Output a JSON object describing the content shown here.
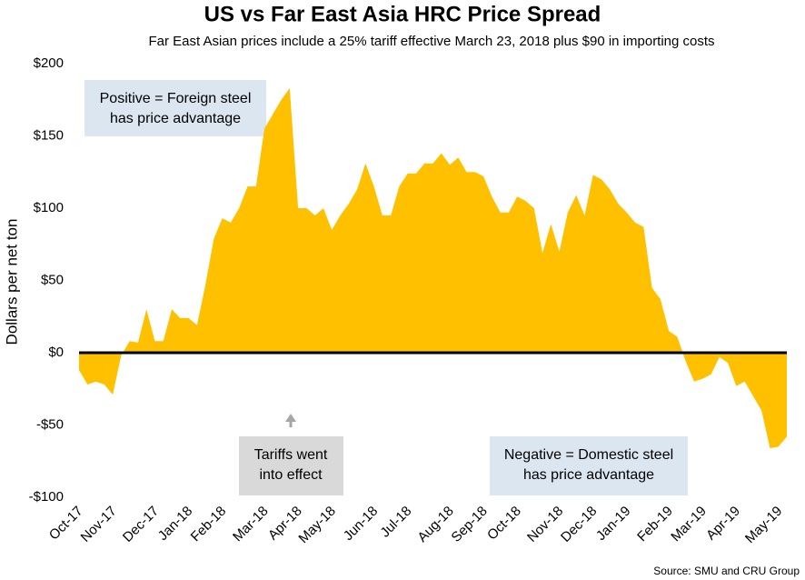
{
  "chart_data": {
    "type": "area",
    "title": "US vs Far East Asia HRC Price Spread",
    "subtitle": "Far East Asian prices include a 25% tariff effective March 23, 2018 plus $90 in importing costs",
    "y_label": "Dollars per net ton",
    "source": "Source: SMU and CRU Group",
    "color": "#FFC000",
    "categories": [
      "Oct-17",
      null,
      null,
      null,
      "Nov-17",
      null,
      null,
      null,
      null,
      "Dec-17",
      null,
      null,
      null,
      "Jan-18",
      null,
      null,
      null,
      "Feb-18",
      null,
      null,
      null,
      null,
      "Mar-18",
      null,
      null,
      null,
      "Apr-18",
      null,
      null,
      null,
      "May-18",
      null,
      null,
      null,
      null,
      "Jun-18",
      null,
      null,
      null,
      "Jul-18",
      null,
      null,
      null,
      null,
      "Aug-18",
      null,
      null,
      null,
      "Sep-18",
      null,
      null,
      null,
      "Oct-18",
      null,
      null,
      null,
      null,
      "Nov-18",
      null,
      null,
      null,
      "Dec-18",
      null,
      null,
      null,
      "Jan-19",
      null,
      null,
      null,
      null,
      "Feb-19",
      null,
      null,
      null,
      "Mar-19",
      null,
      null,
      null,
      "Apr-19",
      null,
      null,
      null,
      null,
      "May-19",
      null
    ],
    "values": [
      -12,
      -22,
      -20,
      -22,
      -29,
      -2,
      8,
      7,
      30,
      8,
      8,
      30,
      24,
      24,
      19,
      47,
      79,
      93,
      90,
      100,
      115,
      115,
      155,
      165,
      175,
      183,
      100,
      100,
      95,
      100,
      85,
      95,
      103,
      113,
      131,
      115,
      95,
      95,
      115,
      124,
      124,
      131,
      131,
      138,
      130,
      135,
      125,
      125,
      122,
      108,
      97,
      97,
      108,
      105,
      100,
      69,
      89,
      70,
      97,
      109,
      95,
      123,
      120,
      113,
      103,
      97,
      90,
      87,
      45,
      37,
      15,
      11,
      -6,
      -20,
      -18,
      -15,
      -3,
      -7,
      -23,
      -20,
      -30,
      -40,
      -66,
      -65,
      -58
    ],
    "ylim": [
      -100,
      200
    ],
    "yticks": [
      {
        "value": -100,
        "label": "-$100"
      },
      {
        "value": -50,
        "label": "-$50"
      },
      {
        "value": 0,
        "label": "$0"
      },
      {
        "value": 50,
        "label": "$50"
      },
      {
        "value": 100,
        "label": "$100"
      },
      {
        "value": 150,
        "label": "$150"
      },
      {
        "value": 200,
        "label": "$200"
      }
    ],
    "annotations": [
      {
        "lines": [
          "Positive = Foreign steel",
          "has price advantage"
        ]
      },
      {
        "lines": [
          "Tariffs went",
          "into effect"
        ]
      },
      {
        "lines": [
          "Negative = Domestic steel",
          "has price advantage"
        ]
      }
    ]
  }
}
